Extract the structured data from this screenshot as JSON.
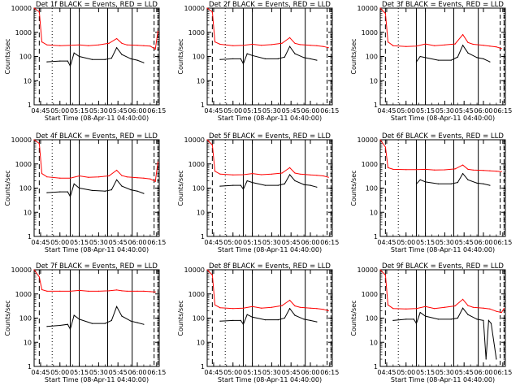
{
  "colors": {
    "black": "#000000",
    "red": "#ff0000",
    "background": "#ffffff"
  },
  "chart_data": [
    {
      "type": "line",
      "title": "Det 1f BLACK = Events, RED = LLD",
      "xlabel": "Start Time (08-Apr-11 04:40:00)",
      "ylabel": "Counts/sec",
      "xticks": [
        "04:45",
        "05:00",
        "05:15",
        "05:30",
        "05:45",
        "06:00",
        "06:15"
      ],
      "yticks": [
        "1",
        "10",
        "100",
        "1000",
        "10000"
      ],
      "ylim": [
        1,
        10000
      ],
      "yscale": "log",
      "series": [
        {
          "color": "red",
          "x": [
            "04:40",
            "04:44",
            "04:46",
            "04:50",
            "05:00",
            "05:08",
            "05:15",
            "05:22",
            "05:30",
            "05:38",
            "05:44",
            "05:48",
            "05:52",
            "06:00",
            "06:05",
            "06:10",
            "06:14",
            "06:16"
          ],
          "values": [
            10000,
            7000,
            400,
            300,
            280,
            290,
            300,
            280,
            300,
            350,
            550,
            350,
            300,
            290,
            280,
            270,
            200,
            1100
          ]
        },
        {
          "color": "black",
          "x": [
            "04:50",
            "05:00",
            "05:06",
            "05:08",
            "05:11",
            "05:15",
            "05:25",
            "05:35",
            "05:40",
            "05:44",
            "05:48",
            "05:55",
            "06:00",
            "06:05"
          ],
          "values": [
            60,
            65,
            65,
            40,
            140,
            100,
            75,
            75,
            85,
            230,
            120,
            80,
            70,
            55
          ]
        }
      ]
    },
    {
      "type": "line",
      "title": "Det 2f BLACK = Events, RED = LLD",
      "xlabel": "Start Time (08-Apr-11 04:40:00)",
      "ylabel": "Counts/sec",
      "xticks": [
        "04:45",
        "05:00",
        "05:15",
        "05:30",
        "05:45",
        "06:00",
        "06:15"
      ],
      "yticks": [
        "1",
        "10",
        "100",
        "1000",
        "10000"
      ],
      "ylim": [
        1,
        10000
      ],
      "yscale": "log",
      "series": [
        {
          "color": "red",
          "x": [
            "04:40",
            "04:44",
            "04:46",
            "04:50",
            "05:00",
            "05:08",
            "05:15",
            "05:22",
            "05:30",
            "05:38",
            "05:44",
            "05:48",
            "05:52",
            "06:00",
            "06:05",
            "06:10",
            "06:14"
          ],
          "values": [
            10000,
            7000,
            400,
            320,
            280,
            290,
            320,
            290,
            310,
            350,
            600,
            350,
            310,
            290,
            280,
            260,
            230
          ]
        },
        {
          "color": "black",
          "x": [
            "04:50",
            "05:00",
            "05:06",
            "05:08",
            "05:11",
            "05:15",
            "05:25",
            "05:35",
            "05:40",
            "05:44",
            "05:48",
            "05:55",
            "06:00",
            "06:05"
          ],
          "values": [
            75,
            80,
            80,
            50,
            130,
            110,
            80,
            80,
            95,
            260,
            130,
            90,
            80,
            70
          ]
        }
      ]
    },
    {
      "type": "line",
      "title": "Det 3f BLACK = Events, RED = LLD",
      "xlabel": "Start Time (08-Apr-11 04:40:00)",
      "ylabel": "Counts/sec",
      "xticks": [
        "04:45",
        "05:00",
        "05:15",
        "05:30",
        "05:45",
        "06:00",
        "06:15"
      ],
      "yticks": [
        "1",
        "10",
        "100",
        "1000",
        "10000"
      ],
      "ylim": [
        1,
        10000
      ],
      "yscale": "log",
      "series": [
        {
          "color": "red",
          "x": [
            "04:40",
            "04:44",
            "04:46",
            "04:50",
            "05:00",
            "05:08",
            "05:15",
            "05:22",
            "05:30",
            "05:38",
            "05:44",
            "05:48",
            "05:52",
            "06:00",
            "06:05",
            "06:10",
            "06:14"
          ],
          "values": [
            10000,
            6000,
            400,
            280,
            260,
            270,
            330,
            280,
            300,
            330,
            800,
            380,
            320,
            290,
            270,
            250,
            210
          ]
        },
        {
          "color": "black",
          "x": [
            "05:08",
            "05:11",
            "05:15",
            "05:25",
            "05:35",
            "05:40",
            "05:44",
            "05:48",
            "05:55",
            "06:00",
            "06:05"
          ],
          "values": [
            60,
            100,
            90,
            70,
            70,
            95,
            290,
            140,
            90,
            80,
            60
          ]
        }
      ]
    },
    {
      "type": "line",
      "title": "Det 4f BLACK = Events, RED = LLD",
      "xlabel": "Start Time (08-Apr-11 04:40:00)",
      "ylabel": "Counts/sec",
      "xticks": [
        "04:45",
        "05:00",
        "05:15",
        "05:30",
        "05:45",
        "06:00",
        "06:15"
      ],
      "yticks": [
        "1",
        "10",
        "100",
        "1000",
        "10000"
      ],
      "ylim": [
        1,
        10000
      ],
      "yscale": "log",
      "series": [
        {
          "color": "red",
          "x": [
            "04:40",
            "04:44",
            "04:46",
            "04:50",
            "05:00",
            "05:08",
            "05:15",
            "05:22",
            "05:30",
            "05:38",
            "05:44",
            "05:48",
            "05:52",
            "06:00",
            "06:05",
            "06:10",
            "06:14",
            "06:16"
          ],
          "values": [
            10000,
            7000,
            400,
            290,
            260,
            260,
            320,
            280,
            290,
            320,
            550,
            330,
            290,
            270,
            260,
            240,
            190,
            1200
          ]
        },
        {
          "color": "black",
          "x": [
            "04:50",
            "05:00",
            "05:06",
            "05:08",
            "05:11",
            "05:15",
            "05:25",
            "05:35",
            "05:40",
            "05:44",
            "05:48",
            "05:55",
            "06:00",
            "06:05"
          ],
          "values": [
            65,
            70,
            70,
            45,
            150,
            100,
            80,
            75,
            85,
            220,
            120,
            85,
            75,
            60
          ]
        }
      ]
    },
    {
      "type": "line",
      "title": "Det 5f BLACK = Events, RED = LLD",
      "xlabel": "Start Time (08-Apr-11 04:40:00)",
      "ylabel": "Counts/sec",
      "xticks": [
        "04:45",
        "05:00",
        "05:15",
        "05:30",
        "05:45",
        "06:00",
        "06:15"
      ],
      "yticks": [
        "1",
        "10",
        "100",
        "1000",
        "10000"
      ],
      "ylim": [
        1,
        10000
      ],
      "yscale": "log",
      "series": [
        {
          "color": "red",
          "x": [
            "04:40",
            "04:44",
            "04:46",
            "04:50",
            "05:00",
            "05:08",
            "05:15",
            "05:22",
            "05:30",
            "05:38",
            "05:44",
            "05:48",
            "05:52",
            "06:00",
            "06:05",
            "06:10",
            "06:14"
          ],
          "values": [
            10000,
            6000,
            500,
            380,
            350,
            360,
            400,
            360,
            380,
            420,
            700,
            420,
            380,
            350,
            340,
            320,
            280
          ]
        },
        {
          "color": "black",
          "x": [
            "04:50",
            "05:00",
            "05:06",
            "05:08",
            "05:11",
            "05:15",
            "05:25",
            "05:35",
            "05:40",
            "05:44",
            "05:48",
            "05:55",
            "06:00",
            "06:05"
          ],
          "values": [
            120,
            130,
            130,
            90,
            200,
            170,
            130,
            130,
            150,
            360,
            200,
            140,
            130,
            110
          ]
        }
      ]
    },
    {
      "type": "line",
      "title": "Det 6f BLACK = Events, RED = LLD",
      "xlabel": "Start Time (08-Apr-11 04:40:00)",
      "ylabel": "Counts/sec",
      "xticks": [
        "04:45",
        "05:00",
        "05:15",
        "05:30",
        "05:45",
        "06:00",
        "06:15"
      ],
      "yticks": [
        "1",
        "10",
        "100",
        "1000",
        "10000"
      ],
      "ylim": [
        1,
        10000
      ],
      "yscale": "log",
      "series": [
        {
          "color": "red",
          "x": [
            "04:40",
            "04:44",
            "04:46",
            "04:50",
            "05:00",
            "05:08",
            "05:15",
            "05:22",
            "05:30",
            "05:38",
            "05:44",
            "05:48",
            "05:52",
            "06:00",
            "06:05",
            "06:10",
            "06:14"
          ],
          "values": [
            10000,
            5000,
            700,
            600,
            580,
            580,
            600,
            560,
            570,
            620,
            900,
            600,
            560,
            540,
            520,
            500,
            480
          ]
        },
        {
          "color": "black",
          "x": [
            "05:08",
            "05:11",
            "05:15",
            "05:25",
            "05:35",
            "05:40",
            "05:44",
            "05:48",
            "05:55",
            "06:00",
            "06:05"
          ],
          "values": [
            150,
            220,
            180,
            150,
            150,
            170,
            400,
            220,
            160,
            150,
            130
          ]
        }
      ]
    },
    {
      "type": "line",
      "title": "Det 7f BLACK = Events, RED = LLD",
      "xlabel": "Start Time (08-Apr-11 04:40:00)",
      "ylabel": "Counts/sec",
      "xticks": [
        "04:45",
        "05:00",
        "05:15",
        "05:30",
        "05:45",
        "06:00",
        "06:15"
      ],
      "yticks": [
        "1",
        "10",
        "100",
        "1000",
        "10000"
      ],
      "ylim": [
        1,
        10000
      ],
      "yscale": "log",
      "series": [
        {
          "color": "red",
          "x": [
            "04:40",
            "04:44",
            "04:46",
            "04:50",
            "05:00",
            "05:08",
            "05:15",
            "05:22",
            "05:30",
            "05:38",
            "05:44",
            "05:48",
            "05:52",
            "06:00",
            "06:05",
            "06:10",
            "06:14"
          ],
          "values": [
            10000,
            5000,
            1500,
            1300,
            1300,
            1300,
            1400,
            1300,
            1300,
            1350,
            1450,
            1350,
            1300,
            1300,
            1300,
            1250,
            1200
          ]
        },
        {
          "color": "black",
          "x": [
            "04:50",
            "05:00",
            "05:06",
            "05:08",
            "05:11",
            "05:15",
            "05:25",
            "05:35",
            "05:40",
            "05:44",
            "05:48",
            "05:55",
            "06:00",
            "06:05"
          ],
          "values": [
            45,
            50,
            55,
            35,
            130,
            90,
            60,
            60,
            80,
            300,
            120,
            75,
            65,
            55
          ]
        }
      ]
    },
    {
      "type": "line",
      "title": "Det 8f BLACK = Events, RED = LLD",
      "xlabel": "Start Time (08-Apr-11 04:40:00)",
      "ylabel": "Counts/sec",
      "xticks": [
        "04:45",
        "05:00",
        "05:15",
        "05:30",
        "05:45",
        "06:00",
        "06:15"
      ],
      "yticks": [
        "1",
        "10",
        "100",
        "1000",
        "10000"
      ],
      "ylim": [
        1,
        10000
      ],
      "yscale": "log",
      "series": [
        {
          "color": "red",
          "x": [
            "04:40",
            "04:44",
            "04:46",
            "04:50",
            "05:00",
            "05:08",
            "05:15",
            "05:22",
            "05:30",
            "05:38",
            "05:44",
            "05:48",
            "05:52",
            "06:00",
            "06:05",
            "06:10",
            "06:14"
          ],
          "values": [
            10000,
            6000,
            350,
            270,
            250,
            260,
            300,
            260,
            280,
            330,
            550,
            320,
            280,
            260,
            250,
            230,
            200
          ]
        },
        {
          "color": "black",
          "x": [
            "04:50",
            "05:00",
            "05:06",
            "05:08",
            "05:11",
            "05:15",
            "05:25",
            "05:35",
            "05:40",
            "05:44",
            "05:48",
            "05:55",
            "06:00",
            "06:05"
          ],
          "values": [
            75,
            80,
            80,
            55,
            140,
            110,
            85,
            85,
            100,
            250,
            130,
            90,
            80,
            70
          ]
        }
      ]
    },
    {
      "type": "line",
      "title": "Det 9f BLACK = Events, RED = LLD",
      "xlabel": "Start Time (08-Apr-11 04:40:00)",
      "ylabel": "Counts/sec",
      "xticks": [
        "04:45",
        "05:00",
        "05:15",
        "05:30",
        "05:45",
        "06:00",
        "06:15"
      ],
      "yticks": [
        "1",
        "10",
        "100",
        "1000",
        "10000"
      ],
      "ylim": [
        1,
        10000
      ],
      "yscale": "log",
      "series": [
        {
          "color": "red",
          "x": [
            "04:40",
            "04:44",
            "04:46",
            "04:50",
            "05:00",
            "05:08",
            "05:15",
            "05:22",
            "05:30",
            "05:38",
            "05:44",
            "05:48",
            "05:52",
            "06:00",
            "06:05",
            "06:10",
            "06:14",
            "06:16"
          ],
          "values": [
            10000,
            6000,
            350,
            250,
            240,
            250,
            300,
            250,
            280,
            320,
            600,
            330,
            280,
            260,
            240,
            190,
            170,
            250
          ]
        },
        {
          "color": "black",
          "x": [
            "04:50",
            "05:00",
            "05:06",
            "05:08",
            "05:11",
            "05:15",
            "05:25",
            "05:35",
            "05:40",
            "05:44",
            "05:48",
            "05:55",
            "06:00",
            "06:02",
            "06:04",
            "06:06",
            "06:10"
          ],
          "values": [
            80,
            90,
            90,
            60,
            170,
            120,
            90,
            90,
            100,
            260,
            140,
            90,
            80,
            2,
            80,
            60,
            2
          ]
        }
      ]
    }
  ]
}
